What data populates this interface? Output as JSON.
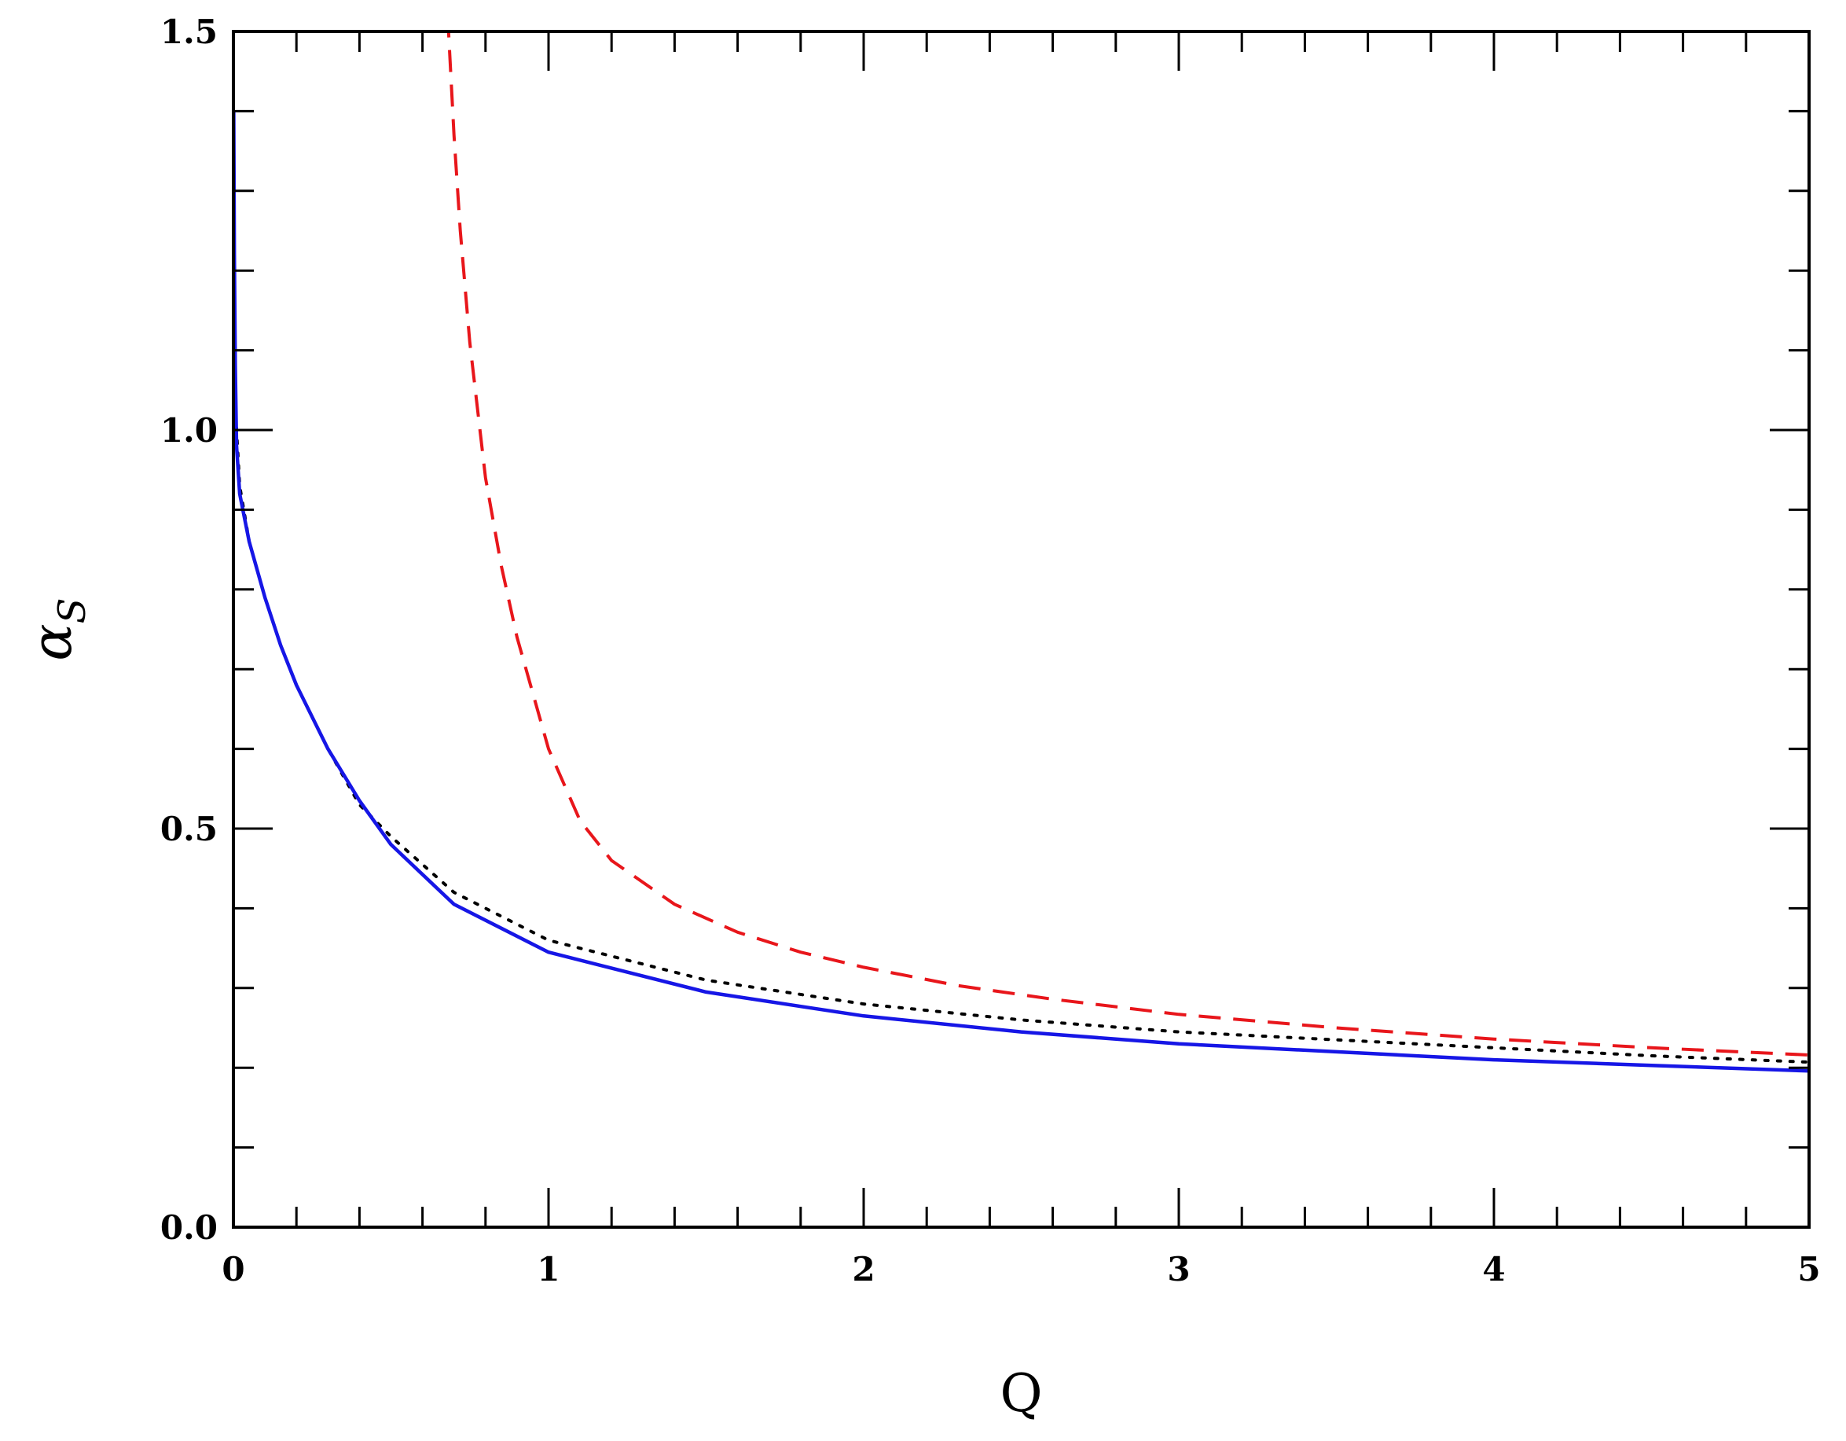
{
  "chart_data": {
    "type": "line",
    "title": "",
    "xlabel": "Q",
    "ylabel": "α",
    "ylabel_subscript": "S",
    "xlim": [
      0,
      5
    ],
    "ylim": [
      0,
      1.5
    ],
    "x_ticks": [
      {
        "value": 0,
        "label": "0"
      },
      {
        "value": 1,
        "label": "1"
      },
      {
        "value": 2,
        "label": "2"
      },
      {
        "value": 3,
        "label": "3"
      },
      {
        "value": 4,
        "label": "4"
      },
      {
        "value": 5,
        "label": "5"
      }
    ],
    "y_ticks": [
      {
        "value": 0,
        "label": "0.0"
      },
      {
        "value": 0.5,
        "label": "0.5"
      },
      {
        "value": 1.0,
        "label": "1.0"
      },
      {
        "value": 1.5,
        "label": "1.5"
      }
    ],
    "x_minor_step": 0.2,
    "y_minor_step": 0.1,
    "grid": false,
    "legend": false,
    "series": [
      {
        "style": "dashed",
        "color": "#e8161b",
        "x": [
          0.68,
          0.7,
          0.72,
          0.75,
          0.8,
          0.85,
          0.9,
          1.0,
          1.1,
          1.2,
          1.4,
          1.6,
          1.8,
          2.0,
          2.3,
          2.6,
          3.0,
          3.5,
          4.0,
          4.5,
          5.0
        ],
        "y": [
          1.52,
          1.37,
          1.25,
          1.11,
          0.94,
          0.83,
          0.74,
          0.6,
          0.51,
          0.46,
          0.405,
          0.37,
          0.345,
          0.326,
          0.303,
          0.286,
          0.267,
          0.25,
          0.236,
          0.225,
          0.216
        ]
      },
      {
        "style": "dotted",
        "color": "#000000",
        "x": [
          0.005,
          0.01,
          0.02,
          0.05,
          0.1,
          0.15,
          0.2,
          0.3,
          0.4,
          0.5,
          0.7,
          1.0,
          1.5,
          2.0,
          2.5,
          3.0,
          3.5,
          4.0,
          4.5,
          5.0
        ],
        "y": [
          1.05,
          1.0,
          0.93,
          0.86,
          0.79,
          0.73,
          0.68,
          0.6,
          0.53,
          0.49,
          0.42,
          0.36,
          0.31,
          0.28,
          0.26,
          0.245,
          0.235,
          0.225,
          0.215,
          0.207
        ]
      },
      {
        "style": "solid",
        "color": "#1616e6",
        "x": [
          0.001,
          0.003,
          0.006,
          0.01,
          0.02,
          0.05,
          0.1,
          0.15,
          0.2,
          0.3,
          0.4,
          0.5,
          0.7,
          1.0,
          1.5,
          2.0,
          2.5,
          3.0,
          3.5,
          4.0,
          4.5,
          5.0
        ],
        "y": [
          1.4,
          1.22,
          1.08,
          0.98,
          0.92,
          0.86,
          0.79,
          0.73,
          0.68,
          0.6,
          0.535,
          0.48,
          0.405,
          0.345,
          0.295,
          0.265,
          0.245,
          0.23,
          0.22,
          0.21,
          0.203,
          0.196
        ]
      }
    ]
  }
}
